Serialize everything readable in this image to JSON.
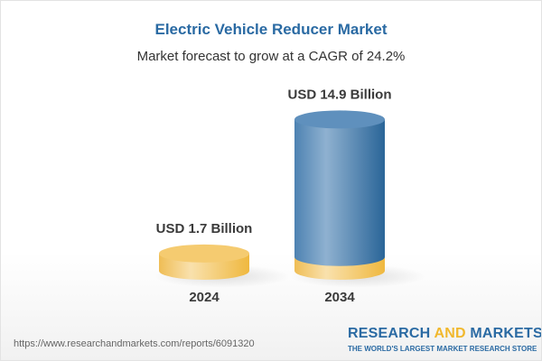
{
  "title": "Electric Vehicle Reducer Market",
  "subtitle": "Market forecast to grow at a CAGR of 24.2%",
  "chart_data": {
    "type": "bar",
    "style": "3d-cylinder",
    "categories": [
      "2024",
      "2034"
    ],
    "values": [
      1.7,
      14.9
    ],
    "unit": "USD Billion",
    "data_labels": [
      "USD 1.7 Billion",
      "USD 14.9 Billion"
    ],
    "colors": {
      "2024": "#f3c25a",
      "2034": "#4f86b6"
    }
  },
  "footer": {
    "url": "https://www.researchandmarkets.com/reports/6091320",
    "logo_research": "RESEARCH",
    "logo_and": "AND",
    "logo_markets": "MARKETS",
    "logo_tagline": "THE WORLD'S LARGEST MARKET RESEARCH STORE"
  }
}
